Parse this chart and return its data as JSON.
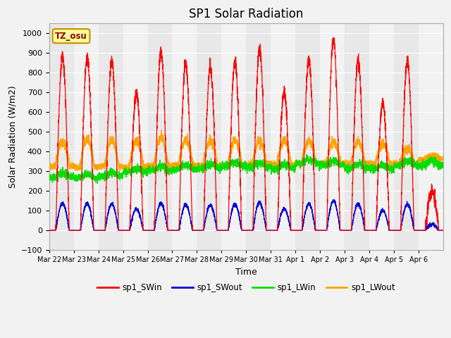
{
  "title": "SP1 Solar Radiation",
  "ylabel": "Solar Radiation (W/m2)",
  "xlabel": "Time",
  "ylim": [
    -100,
    1050
  ],
  "yticks": [
    -100,
    0,
    100,
    200,
    300,
    400,
    500,
    600,
    700,
    800,
    900,
    1000
  ],
  "tz_label": "TZ_osu",
  "colors": {
    "sp1_SWin": "#FF0000",
    "sp1_SWout": "#0000DD",
    "sp1_LWin": "#00DD00",
    "sp1_LWout": "#FFA500"
  },
  "fig_bg": "#F2F2F2",
  "plot_bg": "#E8E8E8",
  "band_color": "#DCDCDC",
  "grid_color": "#FFFFFF",
  "n_days": 16,
  "x_tick_labels": [
    "Mar 22",
    "Mar 23",
    "Mar 24",
    "Mar 25",
    "Mar 26",
    "Mar 27",
    "Mar 28",
    "Mar 29",
    "Mar 30",
    "Mar 31",
    "Apr 1",
    "Apr 2",
    "Apr 3",
    "Apr 4",
    "Apr 5",
    "Apr 6"
  ],
  "sw_in_peaks": [
    880,
    875,
    860,
    700,
    900,
    845,
    830,
    855,
    920,
    700,
    865,
    970,
    865,
    645,
    860,
    200
  ],
  "lw_in_base": [
    270,
    265,
    275,
    295,
    305,
    310,
    315,
    325,
    320,
    315,
    340,
    330,
    315,
    310,
    330,
    330
  ],
  "lw_out_base": [
    325,
    320,
    325,
    320,
    330,
    330,
    330,
    330,
    335,
    335,
    340,
    340,
    340,
    335,
    340,
    360
  ],
  "lw_out_peaks": [
    450,
    465,
    460,
    455,
    475,
    460,
    460,
    455,
    455,
    460,
    455,
    450,
    450,
    445,
    415,
    375
  ]
}
